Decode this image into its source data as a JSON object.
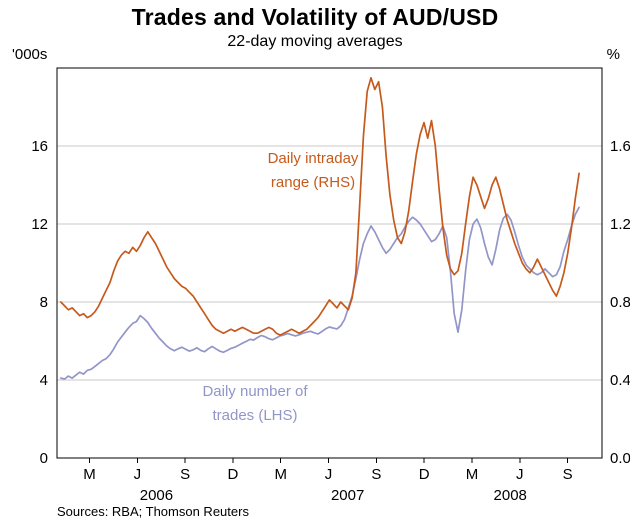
{
  "colors": {
    "range": "#C65A1C",
    "trades": "#9295C8",
    "grid": "#C8C8C8",
    "frame": "#000000"
  },
  "chart_data": {
    "type": "line",
    "title": "Trades and Volatility of AUD/USD",
    "subtitle": "22-day moving averages",
    "source": "Sources: RBA; Thomson Reuters",
    "left_axis": {
      "unit": "'000s",
      "max": 20,
      "ticks": [
        0,
        4,
        8,
        12,
        16
      ],
      "tick_labels": [
        "0",
        "4",
        "8",
        "12",
        "16"
      ]
    },
    "right_axis": {
      "unit": "%",
      "max": 2,
      "tick_labels": [
        "0.0",
        "0.4",
        "0.8",
        "1.2",
        "1.6"
      ]
    },
    "x_axis": {
      "domain": [
        2006.0,
        2008.85
      ],
      "ticks": [
        {
          "label": "M",
          "x": 2006.17
        },
        {
          "label": "J",
          "x": 2006.42
        },
        {
          "label": "S",
          "x": 2006.67
        },
        {
          "label": "D",
          "x": 2006.92
        },
        {
          "label": "M",
          "x": 2007.17
        },
        {
          "label": "J",
          "x": 2007.42
        },
        {
          "label": "S",
          "x": 2007.67
        },
        {
          "label": "D",
          "x": 2007.92
        },
        {
          "label": "M",
          "x": 2008.17
        },
        {
          "label": "J",
          "x": 2008.42
        },
        {
          "label": "S",
          "x": 2008.67
        }
      ],
      "year_labels": [
        {
          "label": "2006",
          "x": 2006.52
        },
        {
          "label": "2007",
          "x": 2007.52
        },
        {
          "label": "2008",
          "x": 2008.37
        }
      ]
    },
    "annotations": {
      "range_label": [
        "Daily intraday",
        "range (RHS)"
      ],
      "trades_label": [
        "Daily number of",
        "trades (LHS)"
      ]
    },
    "series": [
      {
        "name": "Daily number of trades (LHS)",
        "axis": "left",
        "color_key": "trades",
        "x_start": 2006.02,
        "x_end": 2008.73,
        "values": [
          4.1,
          4.05,
          4.2,
          4.1,
          4.25,
          4.4,
          4.3,
          4.5,
          4.55,
          4.7,
          4.85,
          5.0,
          5.1,
          5.3,
          5.6,
          5.95,
          6.2,
          6.45,
          6.7,
          6.9,
          7.0,
          7.3,
          7.15,
          6.95,
          6.65,
          6.4,
          6.15,
          5.95,
          5.75,
          5.6,
          5.5,
          5.6,
          5.68,
          5.58,
          5.48,
          5.55,
          5.65,
          5.52,
          5.45,
          5.6,
          5.72,
          5.6,
          5.48,
          5.42,
          5.52,
          5.62,
          5.68,
          5.78,
          5.88,
          5.98,
          6.08,
          6.05,
          6.18,
          6.28,
          6.22,
          6.12,
          6.06,
          6.16,
          6.26,
          6.32,
          6.38,
          6.32,
          6.26,
          6.32,
          6.4,
          6.45,
          6.5,
          6.42,
          6.36,
          6.48,
          6.62,
          6.72,
          6.66,
          6.62,
          6.78,
          7.1,
          7.7,
          8.3,
          9.2,
          10.2,
          11.0,
          11.5,
          11.9,
          11.6,
          11.2,
          10.8,
          10.5,
          10.7,
          11.0,
          11.3,
          11.5,
          11.85,
          12.15,
          12.35,
          12.2,
          12.0,
          11.7,
          11.4,
          11.1,
          11.2,
          11.5,
          11.9,
          11.3,
          9.6,
          7.4,
          6.45,
          7.6,
          9.6,
          11.2,
          12.0,
          12.25,
          11.8,
          11.0,
          10.3,
          9.9,
          10.7,
          11.7,
          12.3,
          12.5,
          12.2,
          11.6,
          10.9,
          10.3,
          9.9,
          9.7,
          9.5,
          9.4,
          9.5,
          9.7,
          9.5,
          9.3,
          9.4,
          9.8,
          10.6,
          11.2,
          11.9,
          12.5,
          12.85
        ]
      },
      {
        "name": "Daily intraday range (RHS)",
        "axis": "right",
        "color_key": "range",
        "x_start": 2006.02,
        "x_end": 2008.73,
        "values": [
          0.8,
          0.78,
          0.76,
          0.77,
          0.75,
          0.73,
          0.74,
          0.72,
          0.73,
          0.75,
          0.78,
          0.82,
          0.86,
          0.9,
          0.96,
          1.01,
          1.04,
          1.06,
          1.05,
          1.08,
          1.06,
          1.09,
          1.13,
          1.16,
          1.13,
          1.1,
          1.06,
          1.02,
          0.98,
          0.95,
          0.92,
          0.9,
          0.88,
          0.87,
          0.85,
          0.83,
          0.8,
          0.77,
          0.74,
          0.71,
          0.68,
          0.66,
          0.65,
          0.64,
          0.65,
          0.66,
          0.65,
          0.66,
          0.67,
          0.66,
          0.65,
          0.64,
          0.64,
          0.65,
          0.66,
          0.67,
          0.66,
          0.64,
          0.63,
          0.64,
          0.65,
          0.66,
          0.65,
          0.64,
          0.65,
          0.66,
          0.68,
          0.7,
          0.72,
          0.75,
          0.78,
          0.81,
          0.79,
          0.77,
          0.8,
          0.78,
          0.76,
          0.82,
          0.95,
          1.3,
          1.65,
          1.88,
          1.95,
          1.89,
          1.93,
          1.8,
          1.55,
          1.35,
          1.22,
          1.13,
          1.1,
          1.16,
          1.27,
          1.42,
          1.56,
          1.66,
          1.72,
          1.64,
          1.73,
          1.6,
          1.38,
          1.18,
          1.04,
          0.97,
          0.94,
          0.96,
          1.05,
          1.2,
          1.34,
          1.44,
          1.4,
          1.34,
          1.28,
          1.33,
          1.4,
          1.44,
          1.38,
          1.3,
          1.22,
          1.16,
          1.1,
          1.05,
          1.0,
          0.97,
          0.95,
          0.98,
          1.02,
          0.98,
          0.94,
          0.9,
          0.86,
          0.83,
          0.88,
          0.95,
          1.05,
          1.18,
          1.33,
          1.46
        ]
      }
    ]
  }
}
